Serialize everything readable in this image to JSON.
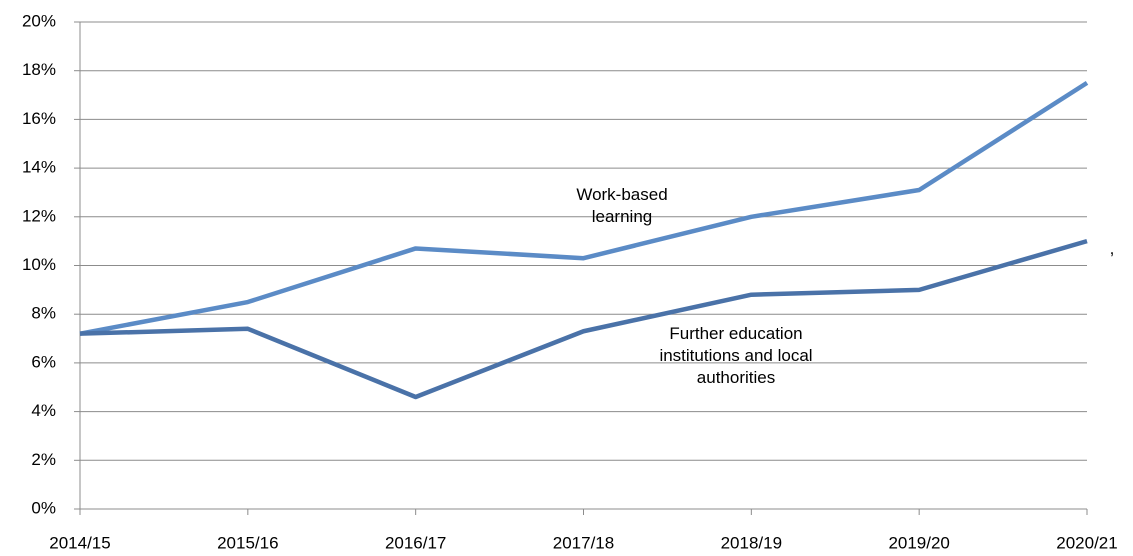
{
  "chart_data": {
    "type": "line",
    "categories": [
      "2014/15",
      "2015/16",
      "2016/17",
      "2017/18",
      "2018/19",
      "2019/20",
      "2020/21"
    ],
    "series": [
      {
        "name": "Work-based learning",
        "color": "#5b8bc6",
        "values": [
          7.2,
          8.5,
          10.7,
          10.3,
          12.0,
          13.1,
          17.5
        ]
      },
      {
        "name": "Further education institutions and local authorities",
        "color": "#4a72a8",
        "values": [
          7.2,
          7.4,
          4.6,
          7.3,
          8.8,
          9.0,
          11.0
        ]
      }
    ],
    "ylim": [
      0,
      20
    ],
    "yticks": [
      {
        "value": 0,
        "label": "0%"
      },
      {
        "value": 2,
        "label": "2%"
      },
      {
        "value": 4,
        "label": "4%"
      },
      {
        "value": 6,
        "label": "6%"
      },
      {
        "value": 8,
        "label": "8%"
      },
      {
        "value": 10,
        "label": "10%"
      },
      {
        "value": 12,
        "label": "12%"
      },
      {
        "value": 14,
        "label": "14%"
      },
      {
        "value": 16,
        "label": "16%"
      },
      {
        "value": 18,
        "label": "18%"
      },
      {
        "value": 20,
        "label": "20%"
      }
    ],
    "grid": true,
    "annotations": [
      ","
    ]
  }
}
